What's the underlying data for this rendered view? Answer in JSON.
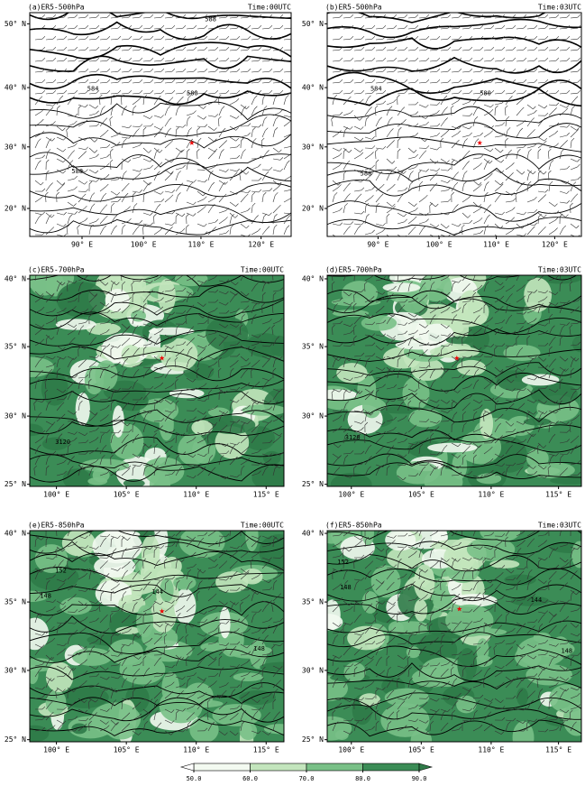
{
  "panels": [
    {
      "title": "(a)ER5-500hPa",
      "time": "Time:00UTC",
      "lat_labels": [
        "50° N",
        "40° N",
        "30° N",
        "20° N"
      ],
      "lon_labels": [
        "90° E",
        "100° E",
        "110° E",
        "120° E"
      ],
      "contour_labels": [
        "588",
        "584",
        "580",
        "588"
      ]
    },
    {
      "title": "(b)ER5-500hPa",
      "time": "Time:03UTC",
      "lat_labels": [
        "50° N",
        "40° N",
        "30° N",
        "20° N"
      ],
      "lon_labels": [
        "90° E",
        "100° E",
        "110° E",
        "120° E"
      ],
      "contour_labels": [
        "584",
        "580",
        "588"
      ]
    },
    {
      "title": "(c)ER5-700hPa",
      "time": "Time:00UTC",
      "lat_labels": [
        "40° N",
        "35° N",
        "30° N",
        "25° N"
      ],
      "lon_labels": [
        "100° E",
        "105° E",
        "110° E",
        "115° E"
      ],
      "contour_labels": [
        "3120"
      ]
    },
    {
      "title": "(d)ER5-700hPa",
      "time": "Time:03UTC",
      "lat_labels": [
        "40° N",
        "35° N",
        "30° N",
        "25° N"
      ],
      "lon_labels": [
        "100° E",
        "105° E",
        "110° E",
        "115° E"
      ],
      "contour_labels": [
        "3120"
      ]
    },
    {
      "title": "(e)ER5-850hPa",
      "time": "Time:00UTC",
      "lat_labels": [
        "40° N",
        "35° N",
        "30° N",
        "25° N"
      ],
      "lon_labels": [
        "100° E",
        "105° E",
        "110° E",
        "115° E"
      ],
      "contour_labels": [
        "152",
        "148",
        "144",
        "148"
      ]
    },
    {
      "title": "(f)ER5-850hPa",
      "time": "Time:03UTC",
      "lat_labels": [
        "40° N",
        "35° N",
        "30° N",
        "25° N"
      ],
      "lon_labels": [
        "100° E",
        "105° E",
        "110° E",
        "115° E"
      ],
      "contour_labels": [
        "152",
        "148",
        "144",
        "148"
      ]
    }
  ],
  "colorbar": {
    "ticks": [
      {
        "value": 50,
        "label": "50.0"
      },
      {
        "value": 60,
        "label": "60.0"
      },
      {
        "value": 70,
        "label": "70.0"
      },
      {
        "value": 80,
        "label": "80.0"
      },
      {
        "value": 90,
        "label": "90.0"
      }
    ],
    "colors": [
      "#f3faf1",
      "#c3e5bd",
      "#79c087",
      "#3b8c56"
    ]
  }
}
